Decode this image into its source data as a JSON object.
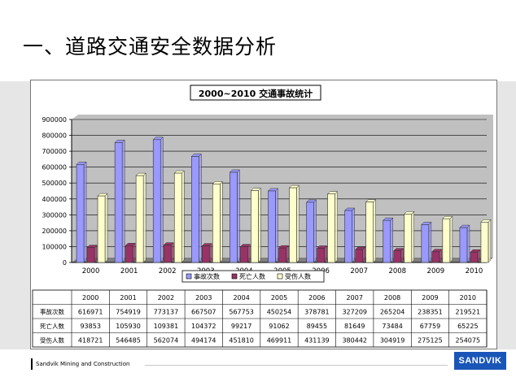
{
  "slide": {
    "title": "一、道路交通安全数据分析"
  },
  "footer": {
    "company": "Sandvik Mining and Construction",
    "logo_text": "SANDVIK"
  },
  "colors": {
    "series": [
      "#9999ff",
      "#993366",
      "#ffffcc"
    ],
    "plot_bg": "#c0c0c0",
    "logo_bg": "#1a56b8"
  },
  "chart_data": {
    "type": "bar",
    "title": "2000~2010 交通事故统计",
    "categories": [
      "2000",
      "2001",
      "2002",
      "2003",
      "2004",
      "2005",
      "2006",
      "2007",
      "2008",
      "2009",
      "2010"
    ],
    "series": [
      {
        "name": "事故次数",
        "values": [
          616971,
          754919,
          773137,
          667507,
          567753,
          450254,
          378781,
          327209,
          265204,
          238351,
          219521
        ]
      },
      {
        "name": "死亡人数",
        "values": [
          93853,
          105930,
          109381,
          104372,
          99217,
          91062,
          89455,
          81649,
          73484,
          67759,
          65225
        ]
      },
      {
        "name": "受伤人数",
        "values": [
          418721,
          546485,
          562074,
          494174,
          451810,
          469911,
          431139,
          380442,
          304919,
          275125,
          254075
        ]
      }
    ],
    "y_ticks": [
      "900000",
      "800000",
      "700000",
      "600000",
      "500000",
      "400000",
      "300000",
      "200000",
      "100000",
      "0"
    ],
    "ylim": [
      0,
      900000
    ],
    "grid": true,
    "legend": "bottom",
    "data_table": {
      "row_labels": [
        "事故次数",
        "死亡人数",
        "受伤人数"
      ],
      "rows": [
        [
          "616971",
          "754919",
          "773137",
          "667507",
          "567753",
          "450254",
          "378781",
          "327209",
          "265204",
          "238351",
          "219521"
        ],
        [
          "93853",
          "105930",
          "109381",
          "104372",
          "99217",
          "91062",
          "89455",
          "81649",
          "73484",
          "67759",
          "65225"
        ],
        [
          "418721",
          "546485",
          "562074",
          "494174",
          "451810",
          "469911",
          "431139",
          "380442",
          "304919",
          "275125",
          "254075"
        ]
      ]
    }
  }
}
